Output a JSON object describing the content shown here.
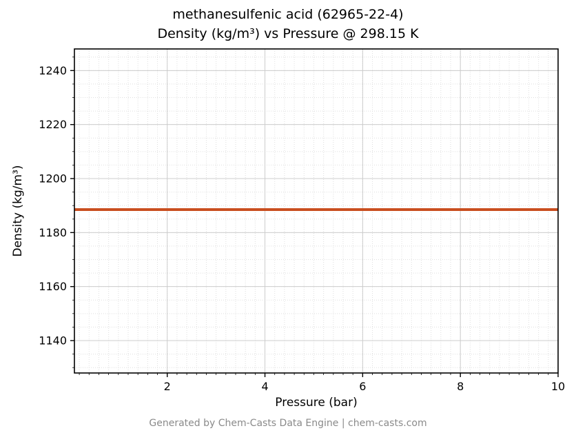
{
  "figure": {
    "title_line1": "methanesulfenic acid (62965-22-4)",
    "title_line2": "Density (kg/m³) vs Pressure @ 298.15 K",
    "compound": "methanesulfenic acid",
    "cas_number": "62965-22-4",
    "temperature": "298.15 K",
    "footer": "Generated by Chem-Casts Data Engine | chem-casts.com"
  },
  "chart_data": {
    "type": "line",
    "title": "methanesulfenic acid (62965-22-4)\nDensity (kg/m³) vs Pressure @ 298.15 K",
    "xlabel": "Pressure (bar)",
    "ylabel": "Density (kg/m³)",
    "xlim": [
      0.1,
      10
    ],
    "ylim": [
      1128,
      1248
    ],
    "x_ticks": [
      2,
      4,
      6,
      8,
      10
    ],
    "y_ticks": [
      1140,
      1160,
      1180,
      1200,
      1220,
      1240
    ],
    "grid": {
      "major": true,
      "minor": true,
      "x_minor_step": 0.2,
      "y_minor_step": 5
    },
    "legend_position": "none",
    "style": {
      "line_width": 4,
      "major_grid_color": "#cccccc",
      "minor_grid_color": "#dedede",
      "spine_color": "#000000",
      "tick_label_color": "#000000"
    },
    "series": [
      {
        "name": "density",
        "color": "#c94e1f",
        "x": [
          0.1,
          1,
          2,
          3,
          4,
          5,
          6,
          7,
          8,
          9,
          10
        ],
        "y": [
          1188.5,
          1188.5,
          1188.5,
          1188.5,
          1188.5,
          1188.5,
          1188.5,
          1188.5,
          1188.5,
          1188.5,
          1188.5
        ]
      }
    ]
  }
}
